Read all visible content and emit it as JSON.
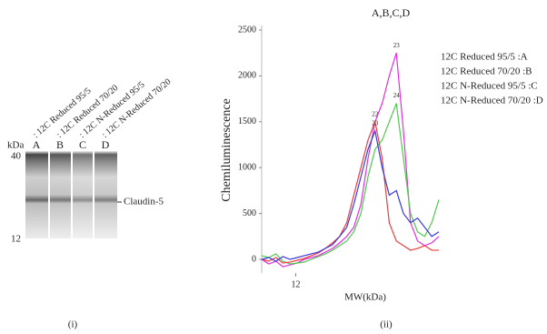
{
  "gel": {
    "unit": "kDa",
    "markers": [
      40,
      12
    ],
    "band_label": "Claudin-5",
    "panel_label": "(i)",
    "lanes": [
      {
        "letter": "A",
        "name": ": 12C Reduced 95/5",
        "color": "#d020d0"
      },
      {
        "letter": "B",
        "name": ": 12C Reduced 70/20",
        "color": "#30c030"
      },
      {
        "letter": "C",
        "name": ": 12C N-Reduced 95/5",
        "color": "#e02020"
      },
      {
        "letter": "D",
        "name": ": 12C N-Reduced 70/20",
        "color": "#2020d0"
      }
    ]
  },
  "chart_data": {
    "type": "line",
    "title": "A,B,C,D",
    "ylabel": "Chemiluminescence",
    "xlabel": "MW(kDa)",
    "panel_label": "(ii)",
    "x": [
      0,
      2.5,
      5,
      7.5,
      10,
      12.5,
      15,
      17.5,
      20,
      22.5,
      25,
      27.5,
      30,
      32.5,
      35,
      37.5,
      40,
      42.5,
      45,
      47.5,
      50,
      52.5,
      55,
      57.5,
      60,
      62.5
    ],
    "xlim": [
      0,
      100
    ],
    "xticks": [
      12
    ],
    "ylim": [
      -250,
      2500
    ],
    "yticks": [
      0,
      500,
      1000,
      1500,
      2000,
      2500
    ],
    "series": [
      {
        "name": "12C Reduced 95/5 :A",
        "color": "#e030e0",
        "peak_label": "23",
        "values": [
          0,
          -50,
          -20,
          -80,
          -60,
          -40,
          0,
          20,
          40,
          80,
          120,
          180,
          250,
          350,
          600,
          1100,
          1500,
          1700,
          2000,
          2250,
          1400,
          400,
          200,
          150,
          180,
          250
        ]
      },
      {
        "name": "12C Reduced 70/20 :B",
        "color": "#50c850",
        "peak_label": "24",
        "values": [
          40,
          20,
          60,
          -20,
          -50,
          -40,
          -30,
          0,
          30,
          60,
          100,
          150,
          200,
          300,
          500,
          900,
          1200,
          1300,
          1500,
          1700,
          1100,
          500,
          300,
          250,
          400,
          650
        ]
      },
      {
        "name": "12C N-Reduced 95/5 :C",
        "color": "#e84040",
        "peak_label": "22",
        "values": [
          0,
          -20,
          20,
          -40,
          -30,
          -10,
          10,
          40,
          70,
          120,
          180,
          250,
          400,
          700,
          1000,
          1300,
          1500,
          1100,
          400,
          200,
          150,
          100,
          120,
          150,
          100,
          100
        ]
      },
      {
        "name": "12C N-Reduced 70/20 :D",
        "color": "#3a3ad8",
        "peak_label": "23",
        "values": [
          0,
          20,
          -20,
          30,
          0,
          20,
          40,
          60,
          80,
          120,
          160,
          250,
          350,
          600,
          900,
          1200,
          1400,
          1000,
          700,
          750,
          500,
          400,
          450,
          350,
          250,
          300
        ]
      }
    ]
  }
}
